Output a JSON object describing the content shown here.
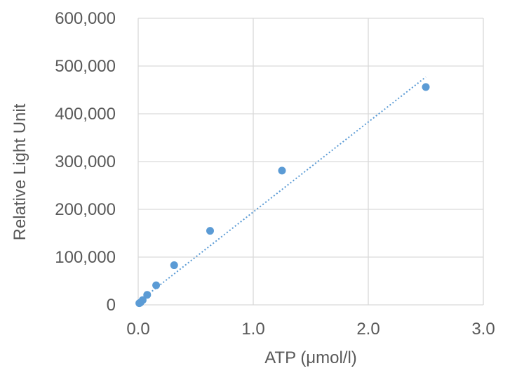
{
  "chart_data": {
    "type": "scatter",
    "title": "",
    "xlabel": "ATP (μmol/l)",
    "ylabel": "Relative Light Unit",
    "xlim": [
      0,
      3
    ],
    "ylim": [
      0,
      600000
    ],
    "x_ticks": [
      "0.0",
      "1.0",
      "2.0",
      "3.0"
    ],
    "y_ticks": [
      "0",
      "100,000",
      "200,000",
      "300,000",
      "400,000",
      "500,000",
      "600,000"
    ],
    "grid": true,
    "legend": "none",
    "series": [
      {
        "x": [
          0.0098,
          0.0195,
          0.039,
          0.078,
          0.156,
          0.3125,
          0.625,
          1.25,
          2.5
        ],
        "y": [
          3500,
          5000,
          10000,
          21000,
          41000,
          83000,
          155000,
          281000,
          456000
        ],
        "color": "#5B9BD5"
      }
    ],
    "trendline": {
      "style": "dotted",
      "color": "#5B9BD5",
      "x": [
        0.0,
        2.5
      ],
      "y": [
        6000,
        477000
      ]
    }
  }
}
